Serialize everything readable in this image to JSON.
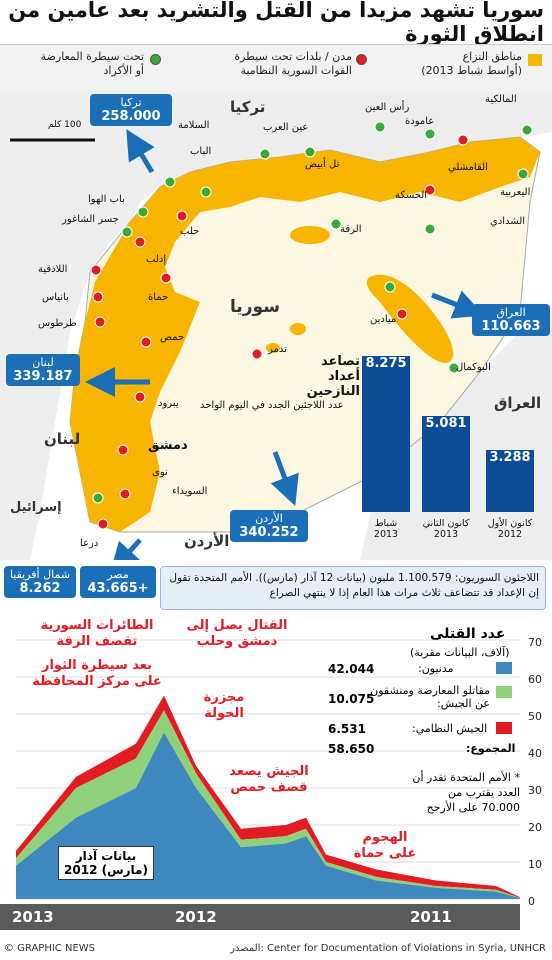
{
  "title": "سوريا تشهد مزيداً من القتل والتشريد بعد عامين من انطلاق الثورة",
  "legend": {
    "conflict": "مناطق النزاع\n(أواسط شباط 2013)",
    "regime": "مدن / بلدات تحت سيطرة\nالقوات السورية النظامية",
    "opposition": "تحت سيطرة المعارضة\nأو الأكراد",
    "colors": {
      "conflict": "#f7b500",
      "regime": "#e31b23",
      "opposition": "#3aa935"
    }
  },
  "map": {
    "scale": "100 كلم",
    "countries": {
      "turkey": "تركيا",
      "syria": "سوريا",
      "iraq": "العراق",
      "lebanon": "لبنان",
      "jordan": "الأردن",
      "israel": "إسرائيل"
    },
    "cities": [
      "المالكية",
      "رأس العين",
      "عامودة",
      "السلامة",
      "عين العرب",
      "الباب",
      "تل أبيض",
      "القامشلي",
      "اليعربية",
      "الحسكة",
      "باب الهوا",
      "جسر الشاغور",
      "حلب",
      "الرقة",
      "الشدادي",
      "اللاذقية",
      "إدلب",
      "بانياس",
      "حماة",
      "طرطوس",
      "ميادين",
      "حمص",
      "تدمر",
      "البوكمال",
      "يبرود",
      "دمشق",
      "نوى",
      "السويداء",
      "درعا"
    ],
    "refugee_boxes": [
      {
        "name": "تركيا",
        "value": "258.000"
      },
      {
        "name": "العراق",
        "value": "110.663"
      },
      {
        "name": "لبنان",
        "value": "339.187"
      },
      {
        "name": "الأردن",
        "value": "340.252"
      },
      {
        "name": "شمال أفريقيا",
        "value": "8.262"
      },
      {
        "name": "مصر",
        "value": "43.665+"
      }
    ],
    "growth_title": "تصاعد\nأعداد النازحين",
    "growth_subtitle": "عدد اللاجئين الجدد في اليوم الواحد"
  },
  "bars": [
    {
      "label": "شباط\n2013",
      "value": 8.275,
      "display": "8.275"
    },
    {
      "label": "كانون الثاني\n2013",
      "value": 5.081,
      "display": "5.081"
    },
    {
      "label": "كانون الأول\n2012",
      "value": 3.288,
      "display": "3.288"
    }
  ],
  "info_text": "اللاجئون السوريون: 1.100.579 مليون (بيانات 12 آذار (مارس)). الأمم المتحدة تقول إن الإعداد قد تتضاعف ثلاث مرات هذا العام إذا لا ينتهي الصراع",
  "chart": {
    "legend_title": "عدد القتلى",
    "legend_subtitle": "(آلاف، البيانات مقربة)",
    "series": [
      {
        "name": "مدنيون:",
        "value": "42.044",
        "color": "#3f87bf"
      },
      {
        "name": "مقاتلو المعارضة ومنشقون عن الجيش:",
        "value": "10.075",
        "color": "#8fd07a"
      },
      {
        "name": "الجيش النظامي:",
        "value": "6.531",
        "color": "#e31b23"
      }
    ],
    "total_label": "المجموع:",
    "total_value": "58.650",
    "note": "* الأمم المتحدة تقدر أن العدد يقترب من 70.000 على الأرجح",
    "annotations": [
      "الطائرات السورية تقصف الرقة",
      "القتال يصل إلى دمشق وحلب",
      "بعد سيطرة الثوار على مركز المحافظة",
      "مجزرة الحولة",
      "الجيش يصعد قصف حمص",
      "الهجوم على حماة"
    ],
    "data_note": "بيانات آذار (مارس) 2012",
    "y_ticks": [
      "70",
      "60",
      "50",
      "40",
      "30",
      "20",
      "10",
      "0"
    ],
    "x_labels": [
      "2013",
      "2012",
      "2011"
    ]
  },
  "footer": {
    "source": "المصدر: Center for Documentation of Violations in Syria, UNHCR",
    "credit": "© GRAPHIC NEWS"
  }
}
